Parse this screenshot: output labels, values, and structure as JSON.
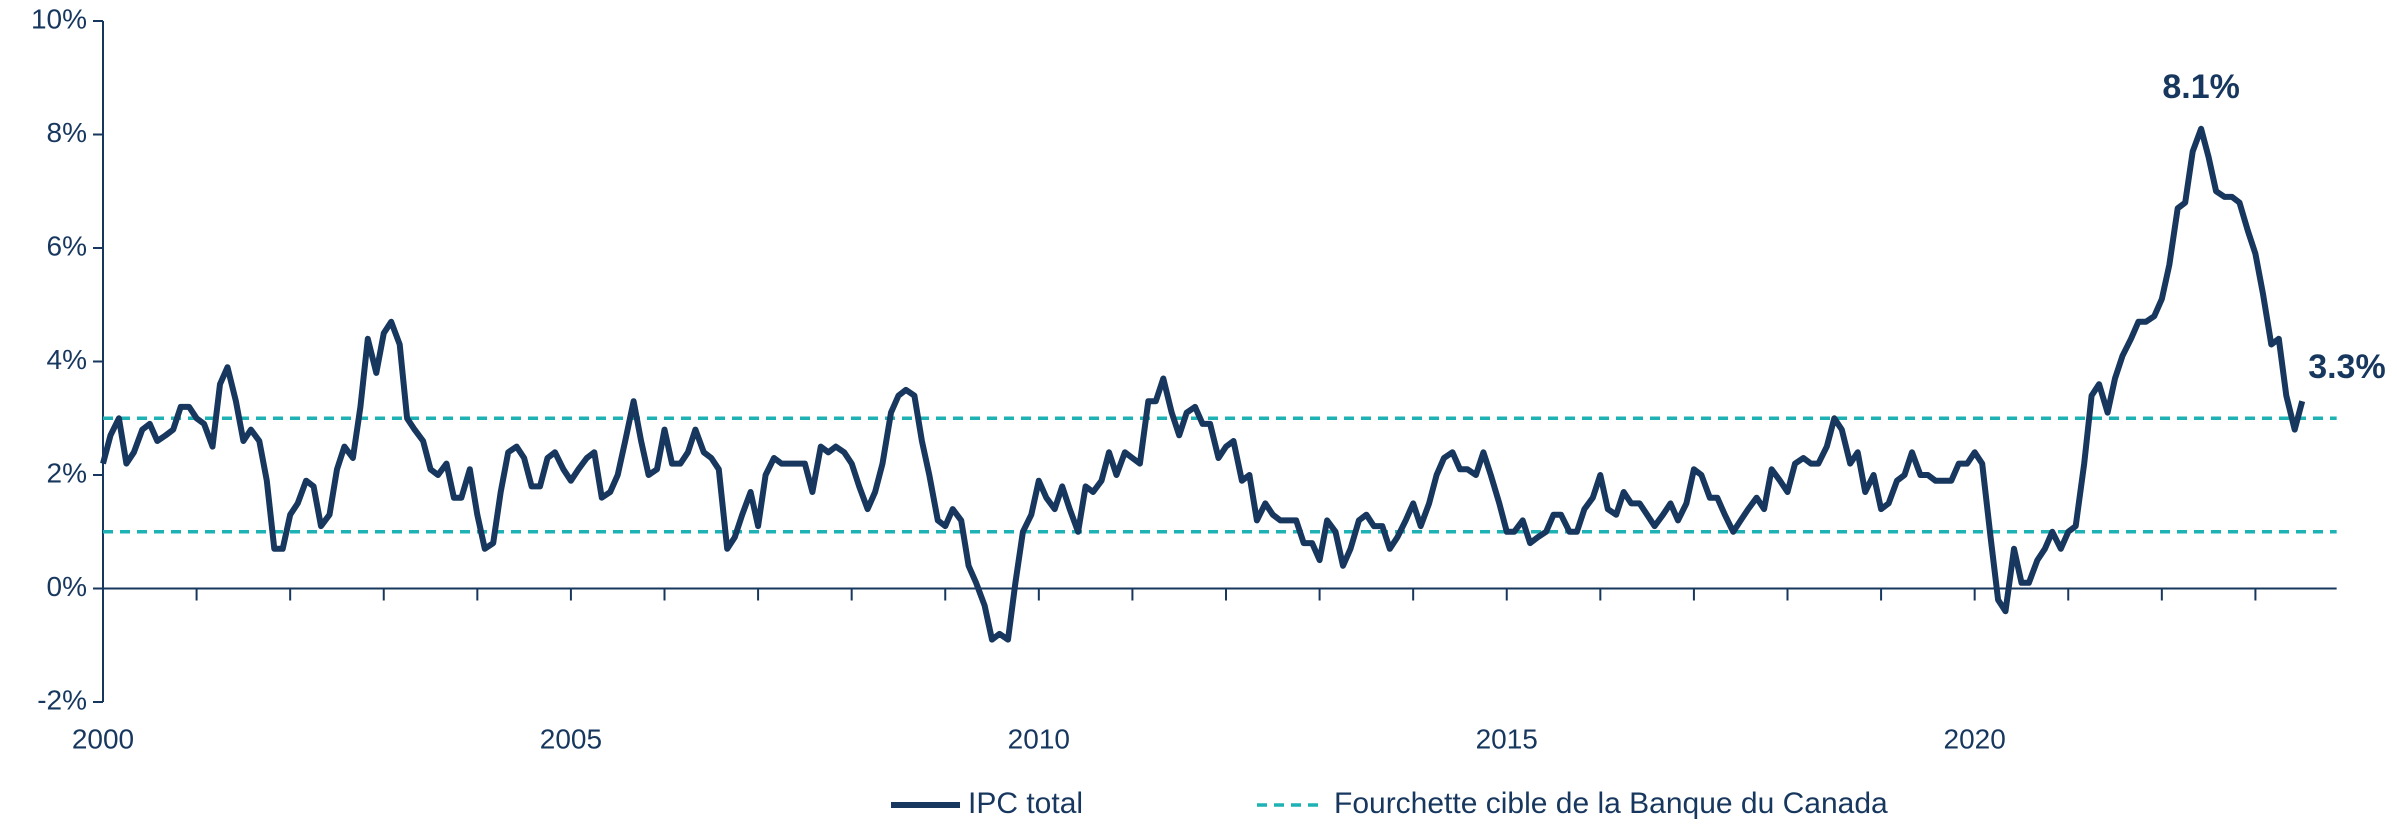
{
  "chart_data": {
    "type": "line",
    "x": [
      2000,
      2000.08,
      2000.17,
      2000.25,
      2000.33,
      2000.42,
      2000.5,
      2000.58,
      2000.67,
      2000.75,
      2000.83,
      2000.92,
      2001,
      2001.08,
      2001.17,
      2001.25,
      2001.33,
      2001.42,
      2001.5,
      2001.58,
      2001.67,
      2001.75,
      2001.83,
      2001.92,
      2002,
      2002.08,
      2002.17,
      2002.25,
      2002.33,
      2002.42,
      2002.5,
      2002.58,
      2002.67,
      2002.75,
      2002.83,
      2002.92,
      2003,
      2003.08,
      2003.17,
      2003.25,
      2003.33,
      2003.42,
      2003.5,
      2003.58,
      2003.67,
      2003.75,
      2003.83,
      2003.92,
      2004,
      2004.08,
      2004.17,
      2004.25,
      2004.33,
      2004.42,
      2004.5,
      2004.58,
      2004.67,
      2004.75,
      2004.83,
      2004.92,
      2005,
      2005.08,
      2005.17,
      2005.25,
      2005.33,
      2005.42,
      2005.5,
      2005.58,
      2005.67,
      2005.75,
      2005.83,
      2005.92,
      2006,
      2006.08,
      2006.17,
      2006.25,
      2006.33,
      2006.42,
      2006.5,
      2006.58,
      2006.67,
      2006.75,
      2006.83,
      2006.92,
      2007,
      2007.08,
      2007.17,
      2007.25,
      2007.33,
      2007.42,
      2007.5,
      2007.58,
      2007.67,
      2007.75,
      2007.83,
      2007.92,
      2008,
      2008.08,
      2008.17,
      2008.25,
      2008.33,
      2008.42,
      2008.5,
      2008.58,
      2008.67,
      2008.75,
      2008.83,
      2008.92,
      2009,
      2009.08,
      2009.17,
      2009.25,
      2009.33,
      2009.42,
      2009.5,
      2009.58,
      2009.67,
      2009.75,
      2009.83,
      2009.92,
      2010,
      2010.08,
      2010.17,
      2010.25,
      2010.33,
      2010.42,
      2010.5,
      2010.58,
      2010.67,
      2010.75,
      2010.83,
      2010.92,
      2011,
      2011.08,
      2011.17,
      2011.25,
      2011.33,
      2011.42,
      2011.5,
      2011.58,
      2011.67,
      2011.75,
      2011.83,
      2011.92,
      2012,
      2012.08,
      2012.17,
      2012.25,
      2012.33,
      2012.42,
      2012.5,
      2012.58,
      2012.67,
      2012.75,
      2012.83,
      2012.92,
      2013,
      2013.08,
      2013.17,
      2013.25,
      2013.33,
      2013.42,
      2013.5,
      2013.58,
      2013.67,
      2013.75,
      2013.83,
      2013.92,
      2014,
      2014.08,
      2014.17,
      2014.25,
      2014.33,
      2014.42,
      2014.5,
      2014.58,
      2014.67,
      2014.75,
      2014.83,
      2014.92,
      2015,
      2015.08,
      2015.17,
      2015.25,
      2015.33,
      2015.42,
      2015.5,
      2015.58,
      2015.67,
      2015.75,
      2015.83,
      2015.92,
      2016,
      2016.08,
      2016.17,
      2016.25,
      2016.33,
      2016.42,
      2016.5,
      2016.58,
      2016.67,
      2016.75,
      2016.83,
      2016.92,
      2017,
      2017.08,
      2017.17,
      2017.25,
      2017.33,
      2017.42,
      2017.5,
      2017.58,
      2017.67,
      2017.75,
      2017.83,
      2017.92,
      2018,
      2018.08,
      2018.17,
      2018.25,
      2018.33,
      2018.42,
      2018.5,
      2018.58,
      2018.67,
      2018.75,
      2018.83,
      2018.92,
      2019,
      2019.08,
      2019.17,
      2019.25,
      2019.33,
      2019.42,
      2019.5,
      2019.58,
      2019.67,
      2019.75,
      2019.83,
      2019.92,
      2020,
      2020.08,
      2020.17,
      2020.25,
      2020.33,
      2020.42,
      2020.5,
      2020.58,
      2020.67,
      2020.75,
      2020.83,
      2020.92,
      2021,
      2021.08,
      2021.17,
      2021.25,
      2021.33,
      2021.42,
      2021.5,
      2021.58,
      2021.67,
      2021.75,
      2021.83,
      2021.92,
      2022,
      2022.08,
      2022.17,
      2022.25,
      2022.33,
      2022.42,
      2022.5,
      2022.58,
      2022.67,
      2022.75,
      2022.83,
      2022.92,
      2023,
      2023.08,
      2023.17,
      2023.25,
      2023.33,
      2023.42,
      2023.5
    ],
    "series": [
      {
        "name": "IPC total",
        "color": "#17375e",
        "values": [
          2.2,
          2.7,
          3.0,
          2.2,
          2.4,
          2.8,
          2.9,
          2.6,
          2.7,
          2.8,
          3.2,
          3.2,
          3.0,
          2.9,
          2.5,
          3.6,
          3.9,
          3.3,
          2.6,
          2.8,
          2.6,
          1.9,
          0.7,
          0.7,
          1.3,
          1.5,
          1.9,
          1.8,
          1.1,
          1.3,
          2.1,
          2.5,
          2.3,
          3.2,
          4.4,
          3.8,
          4.5,
          4.7,
          4.3,
          3.0,
          2.8,
          2.6,
          2.1,
          2.0,
          2.2,
          1.6,
          1.6,
          2.1,
          1.3,
          0.7,
          0.8,
          1.7,
          2.4,
          2.5,
          2.3,
          1.8,
          1.8,
          2.3,
          2.4,
          2.1,
          1.9,
          2.1,
          2.3,
          2.4,
          1.6,
          1.7,
          2.0,
          2.6,
          3.3,
          2.6,
          2.0,
          2.1,
          2.8,
          2.2,
          2.2,
          2.4,
          2.8,
          2.4,
          2.3,
          2.1,
          0.7,
          0.9,
          1.3,
          1.7,
          1.1,
          2.0,
          2.3,
          2.2,
          2.2,
          2.2,
          2.2,
          1.7,
          2.5,
          2.4,
          2.5,
          2.4,
          2.2,
          1.8,
          1.4,
          1.7,
          2.2,
          3.1,
          3.4,
          3.5,
          3.4,
          2.6,
          2.0,
          1.2,
          1.1,
          1.4,
          1.2,
          0.4,
          0.1,
          -0.3,
          -0.9,
          -0.8,
          -0.9,
          0.1,
          1.0,
          1.3,
          1.9,
          1.6,
          1.4,
          1.8,
          1.4,
          1.0,
          1.8,
          1.7,
          1.9,
          2.4,
          2.0,
          2.4,
          2.3,
          2.2,
          3.3,
          3.3,
          3.7,
          3.1,
          2.7,
          3.1,
          3.2,
          2.9,
          2.9,
          2.3,
          2.5,
          2.6,
          1.9,
          2.0,
          1.2,
          1.5,
          1.3,
          1.2,
          1.2,
          1.2,
          0.8,
          0.8,
          0.5,
          1.2,
          1.0,
          0.4,
          0.7,
          1.2,
          1.3,
          1.1,
          1.1,
          0.7,
          0.9,
          1.2,
          1.5,
          1.1,
          1.5,
          2.0,
          2.3,
          2.4,
          2.1,
          2.1,
          2.0,
          2.4,
          2.0,
          1.5,
          1.0,
          1.0,
          1.2,
          0.8,
          0.9,
          1.0,
          1.3,
          1.3,
          1.0,
          1.0,
          1.4,
          1.6,
          2.0,
          1.4,
          1.3,
          1.7,
          1.5,
          1.5,
          1.3,
          1.1,
          1.3,
          1.5,
          1.2,
          1.5,
          2.1,
          2.0,
          1.6,
          1.6,
          1.3,
          1.0,
          1.2,
          1.4,
          1.6,
          1.4,
          2.1,
          1.9,
          1.7,
          2.2,
          2.3,
          2.2,
          2.2,
          2.5,
          3.0,
          2.8,
          2.2,
          2.4,
          1.7,
          2.0,
          1.4,
          1.5,
          1.9,
          2.0,
          2.4,
          2.0,
          2.0,
          1.9,
          1.9,
          1.9,
          2.2,
          2.2,
          2.4,
          2.2,
          0.9,
          -0.2,
          -0.4,
          0.7,
          0.1,
          0.1,
          0.5,
          0.7,
          1.0,
          0.7,
          1.0,
          1.1,
          2.2,
          3.4,
          3.6,
          3.1,
          3.7,
          4.1,
          4.4,
          4.7,
          4.7,
          4.8,
          5.1,
          5.7,
          6.7,
          6.8,
          7.7,
          8.1,
          7.6,
          7.0,
          6.9,
          6.9,
          6.8,
          6.3,
          5.9,
          5.2,
          4.3,
          4.4,
          3.4,
          2.8,
          3.3
        ],
        "value_labels": [
          null,
          null,
          null,
          null,
          null,
          null,
          null,
          null,
          null,
          null,
          null,
          null,
          null,
          null,
          null,
          null,
          null,
          null,
          null,
          null,
          null,
          null,
          null,
          null,
          null,
          null,
          null,
          null,
          null,
          null,
          null,
          null,
          null,
          null,
          null,
          null,
          null,
          null,
          null,
          null,
          null,
          null,
          null,
          null,
          null,
          null,
          null,
          null,
          null,
          null,
          null,
          null,
          null,
          null,
          null,
          null,
          null,
          null,
          null,
          null,
          null,
          null,
          null,
          null,
          null,
          null,
          null,
          null,
          null,
          null,
          null,
          null,
          null,
          null,
          null,
          null,
          null,
          null,
          null,
          null,
          null,
          null,
          null,
          null,
          null,
          null,
          null,
          null,
          null,
          null,
          null,
          null,
          null,
          null,
          null,
          null,
          null,
          null,
          null,
          null,
          null,
          null,
          null,
          null,
          null,
          null,
          null,
          null,
          null,
          null,
          null,
          null,
          null,
          null,
          null,
          null,
          null,
          null,
          null,
          null,
          null,
          null,
          null,
          null,
          null,
          null,
          null,
          null,
          null,
          null,
          null,
          null,
          null,
          null,
          null,
          null,
          null,
          null,
          null,
          null,
          null,
          null,
          null,
          null,
          null,
          null,
          null,
          null,
          null,
          null,
          null,
          null,
          null,
          null,
          null,
          null,
          null,
          null,
          null,
          null,
          null,
          null,
          null,
          null,
          null,
          null,
          null,
          null,
          null,
          null,
          null,
          null,
          null,
          null,
          null,
          null,
          null,
          null,
          null,
          null,
          null,
          null,
          null,
          null,
          null,
          null,
          null,
          null,
          null,
          null,
          null,
          null,
          null,
          null,
          null,
          null,
          null,
          null,
          null,
          null,
          null,
          null,
          null,
          null,
          null,
          null,
          null,
          null,
          null,
          null,
          null,
          null,
          null,
          null,
          null,
          null,
          null,
          null,
          null,
          null,
          null,
          null,
          null,
          null,
          null,
          null,
          null,
          null,
          null,
          null,
          null,
          null,
          null,
          null,
          null,
          null,
          null,
          null,
          null,
          null,
          null,
          null,
          null,
          null,
          null,
          null,
          null,
          null,
          null,
          null,
          null,
          null,
          null,
          null,
          null,
          null,
          null,
          null,
          null,
          null,
          null,
          null,
          null,
          null,
          null,
          null,
          null,
          null,
          null,
          "8.1%",
          null,
          null,
          null,
          null,
          null,
          null,
          null,
          null,
          null,
          null,
          null,
          null,
          "3.3%"
        ]
      }
    ],
    "reference_lines": {
      "name": "Fourchette cible de la Banque du Canada",
      "color": "#1fb2b5",
      "style": "dashed",
      "values": [
        1,
        3
      ]
    },
    "xlim": [
      2000,
      2024
    ],
    "xticks": [
      2000,
      2005,
      2010,
      2015,
      2020
    ],
    "xminorticks": [
      2001,
      2002,
      2003,
      2004,
      2006,
      2007,
      2008,
      2009,
      2011,
      2012,
      2013,
      2014,
      2016,
      2017,
      2018,
      2019,
      2021,
      2022,
      2023
    ],
    "ylim": [
      -2,
      10
    ],
    "yticks": [
      {
        "value": -2,
        "label": "-2%"
      },
      {
        "value": 0,
        "label": "0%"
      },
      {
        "value": 2,
        "label": "2%"
      },
      {
        "value": 4,
        "label": "4%"
      },
      {
        "value": 6,
        "label": "6%"
      },
      {
        "value": 8,
        "label": "8%"
      },
      {
        "value": 10,
        "label": "10%"
      }
    ],
    "grid": false,
    "legend": "bottom"
  }
}
